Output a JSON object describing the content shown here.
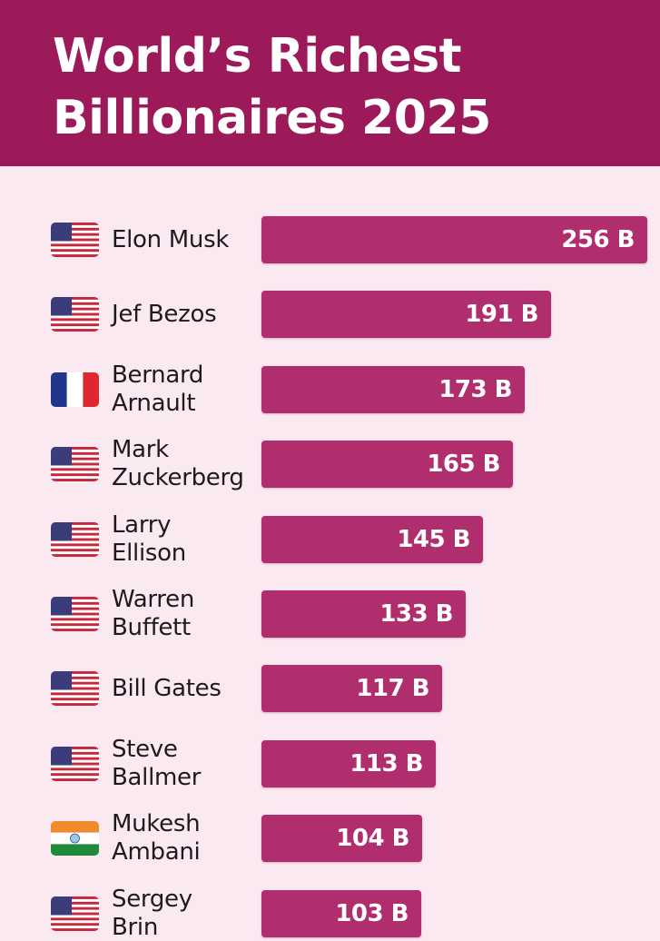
{
  "title_lines": [
    "World’s Richest",
    "Billionaires 2025"
  ],
  "colors": {
    "header": "#9c1a5a",
    "background": "#fbe9f2",
    "bar": "#b02d6e"
  },
  "chart_data": {
    "type": "bar",
    "orientation": "horizontal",
    "title": "World’s Richest Billionaires 2025",
    "unit": "B",
    "categories": [
      "Elon Musk",
      "Jef Bezos",
      "Bernard Arnault",
      "Mark Zuckerberg",
      "Larry Ellison",
      "Warren Buffett",
      "Bill Gates",
      "Steve Ballmer",
      "Mukesh Ambani",
      "Sergey Brin"
    ],
    "name_lines": [
      [
        "Elon Musk"
      ],
      [
        "Jef Bezos"
      ],
      [
        "Bernard",
        "Arnault"
      ],
      [
        "Mark",
        "Zuckerberg"
      ],
      [
        "Larry",
        "Ellison"
      ],
      [
        "Warren",
        "Buffett"
      ],
      [
        "Bill Gates"
      ],
      [
        "Steve",
        "Ballmer"
      ],
      [
        "Mukesh",
        "Ambani"
      ],
      [
        "Sergey",
        "Brin"
      ]
    ],
    "values": [
      256,
      191,
      173,
      165,
      145,
      133,
      117,
      113,
      104,
      103
    ],
    "labels": [
      "256 B",
      "191 B",
      "173 B",
      "165 B",
      "145 B",
      "133 B",
      "117 B",
      "113 B",
      "104 B",
      "103 B"
    ],
    "flags": [
      "us-flag-icon",
      "us-flag-icon",
      "france-flag-icon",
      "us-flag-icon",
      "us-flag-icon",
      "us-flag-icon",
      "us-flag-icon",
      "us-flag-icon",
      "india-flag-icon",
      "us-flag-icon"
    ]
  }
}
